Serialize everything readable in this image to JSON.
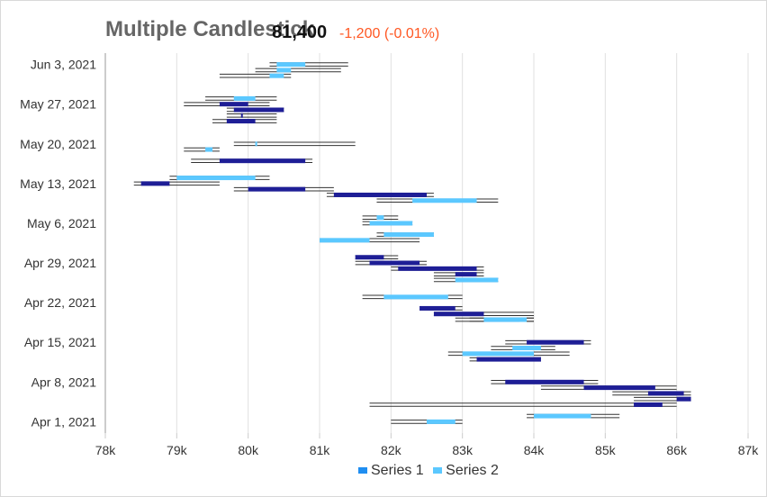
{
  "header": {
    "title": "Multiple Candlestick",
    "price": "81,400",
    "change": "-1,200 (-0.01%)"
  },
  "colors": {
    "series1": "#1e1e96",
    "series1_legend": "#1f8ef1",
    "series2": "#5bc8ff",
    "wick": "#333333",
    "axis": "#cccccc",
    "grid": "#e0e0e0"
  },
  "chart_data": {
    "type": "candlestick",
    "title": "Multiple Candlestick",
    "orientation": "horizontal",
    "x_axis": {
      "min": 78000,
      "max": 87000,
      "ticks": [
        78000,
        79000,
        80000,
        81000,
        82000,
        83000,
        84000,
        85000,
        86000,
        87000
      ],
      "tick_labels": [
        "78k",
        "79k",
        "80k",
        "81k",
        "82k",
        "83k",
        "84k",
        "85k",
        "86k",
        "87k"
      ]
    },
    "y_axis": {
      "start": "2021-03-30",
      "end": "2021-06-05",
      "tick_labels": [
        "Apr 1, 2021",
        "Apr 8, 2021",
        "Apr 15, 2021",
        "Apr 22, 2021",
        "Apr 29, 2021",
        "May 6, 2021",
        "May 13, 2021",
        "May 20, 2021",
        "May 27, 2021",
        "Jun 3, 2021"
      ],
      "tick_dates": [
        "2021-04-01",
        "2021-04-08",
        "2021-04-15",
        "2021-04-22",
        "2021-04-29",
        "2021-05-06",
        "2021-05-13",
        "2021-05-20",
        "2021-05-27",
        "2021-06-03"
      ]
    },
    "grid": true,
    "legend_position": "bottom-center",
    "series": [
      {
        "name": "Series 1",
        "data": [
          {
            "date": "2021-04-04",
            "low": 81700,
            "high": 86000,
            "open": 85800,
            "close": 85400
          },
          {
            "date": "2021-04-05",
            "low": 85400,
            "high": 86200,
            "open": 86200,
            "close": 86000
          },
          {
            "date": "2021-04-06",
            "low": 85100,
            "high": 86200,
            "open": 85600,
            "close": 86100
          },
          {
            "date": "2021-04-07",
            "low": 84100,
            "high": 86000,
            "open": 84700,
            "close": 85700
          },
          {
            "date": "2021-04-08",
            "low": 83400,
            "high": 84900,
            "open": 83600,
            "close": 84700
          },
          {
            "date": "2021-04-12",
            "low": 83100,
            "high": 84100,
            "open": 83200,
            "close": 84100
          },
          {
            "date": "2021-04-15",
            "low": 83600,
            "high": 84800,
            "open": 83900,
            "close": 84700
          },
          {
            "date": "2021-04-19",
            "low": 83100,
            "high": 84000,
            "open": 83800,
            "close": 83300
          },
          {
            "date": "2021-04-20",
            "low": 82600,
            "high": 84000,
            "open": 83300,
            "close": 82600
          },
          {
            "date": "2021-04-21",
            "low": 82400,
            "high": 83000,
            "open": 82400,
            "close": 82900
          },
          {
            "date": "2021-04-27",
            "low": 82600,
            "high": 83300,
            "open": 83200,
            "close": 82900
          },
          {
            "date": "2021-04-28",
            "low": 82000,
            "high": 83300,
            "open": 82100,
            "close": 83200
          },
          {
            "date": "2021-04-29",
            "low": 81500,
            "high": 82500,
            "open": 82400,
            "close": 81700
          },
          {
            "date": "2021-04-30",
            "low": 81500,
            "high": 82100,
            "open": 81500,
            "close": 81900
          },
          {
            "date": "2021-05-11",
            "low": 81100,
            "high": 82600,
            "open": 81200,
            "close": 82500
          },
          {
            "date": "2021-05-12",
            "low": 79800,
            "high": 81200,
            "open": 80000,
            "close": 80800
          },
          {
            "date": "2021-05-13",
            "low": 78400,
            "high": 79600,
            "open": 78900,
            "close": 78500
          },
          {
            "date": "2021-05-17",
            "low": 79200,
            "high": 80900,
            "open": 79600,
            "close": 80800
          },
          {
            "date": "2021-05-24",
            "low": 79500,
            "high": 80400,
            "open": 80100,
            "close": 79700
          },
          {
            "date": "2021-05-25",
            "low": 79700,
            "high": 80400,
            "open": 79900,
            "close": 79900
          },
          {
            "date": "2021-05-26",
            "low": 79700,
            "high": 80500,
            "open": 80500,
            "close": 79800
          },
          {
            "date": "2021-05-27",
            "low": 79100,
            "high": 80300,
            "open": 79600,
            "close": 80000
          }
        ]
      },
      {
        "name": "Series 2",
        "data": [
          {
            "date": "2021-04-01",
            "low": 82000,
            "high": 83000,
            "open": 82500,
            "close": 82900
          },
          {
            "date": "2021-04-02",
            "low": 83900,
            "high": 85200,
            "open": 84000,
            "close": 84800
          },
          {
            "date": "2021-04-13",
            "low": 82800,
            "high": 84500,
            "open": 83000,
            "close": 84000
          },
          {
            "date": "2021-04-14",
            "low": 83400,
            "high": 84300,
            "open": 83700,
            "close": 84100
          },
          {
            "date": "2021-04-19",
            "low": 82900,
            "high": 84000,
            "open": 83900,
            "close": 83300
          },
          {
            "date": "2021-04-23",
            "low": 81600,
            "high": 83000,
            "open": 81900,
            "close": 82800
          },
          {
            "date": "2021-04-26",
            "low": 82600,
            "high": 83500,
            "open": 83500,
            "close": 82900
          },
          {
            "date": "2021-05-03",
            "low": 81000,
            "high": 82400,
            "open": 81700,
            "close": 81000
          },
          {
            "date": "2021-05-04",
            "low": 81800,
            "high": 82600,
            "open": 82600,
            "close": 81900
          },
          {
            "date": "2021-05-06",
            "low": 81600,
            "high": 82300,
            "open": 81700,
            "close": 82300
          },
          {
            "date": "2021-05-07",
            "low": 81600,
            "high": 82100,
            "open": 81800,
            "close": 81900
          },
          {
            "date": "2021-05-10",
            "low": 81800,
            "high": 83500,
            "open": 82300,
            "close": 83200
          },
          {
            "date": "2021-05-14",
            "low": 78900,
            "high": 80300,
            "open": 79000,
            "close": 80100
          },
          {
            "date": "2021-05-19",
            "low": 79100,
            "high": 79600,
            "open": 79400,
            "close": 79500
          },
          {
            "date": "2021-05-20",
            "low": 79800,
            "high": 81500,
            "open": 80100,
            "close": 80100
          },
          {
            "date": "2021-05-28",
            "low": 79400,
            "high": 80400,
            "open": 79800,
            "close": 80100
          },
          {
            "date": "2021-06-01",
            "low": 79600,
            "high": 80600,
            "open": 80500,
            "close": 80300
          },
          {
            "date": "2021-06-02",
            "low": 80100,
            "high": 81300,
            "open": 80400,
            "close": 80600
          },
          {
            "date": "2021-06-03",
            "low": 80300,
            "high": 81400,
            "open": 80400,
            "close": 80800
          }
        ]
      }
    ]
  }
}
